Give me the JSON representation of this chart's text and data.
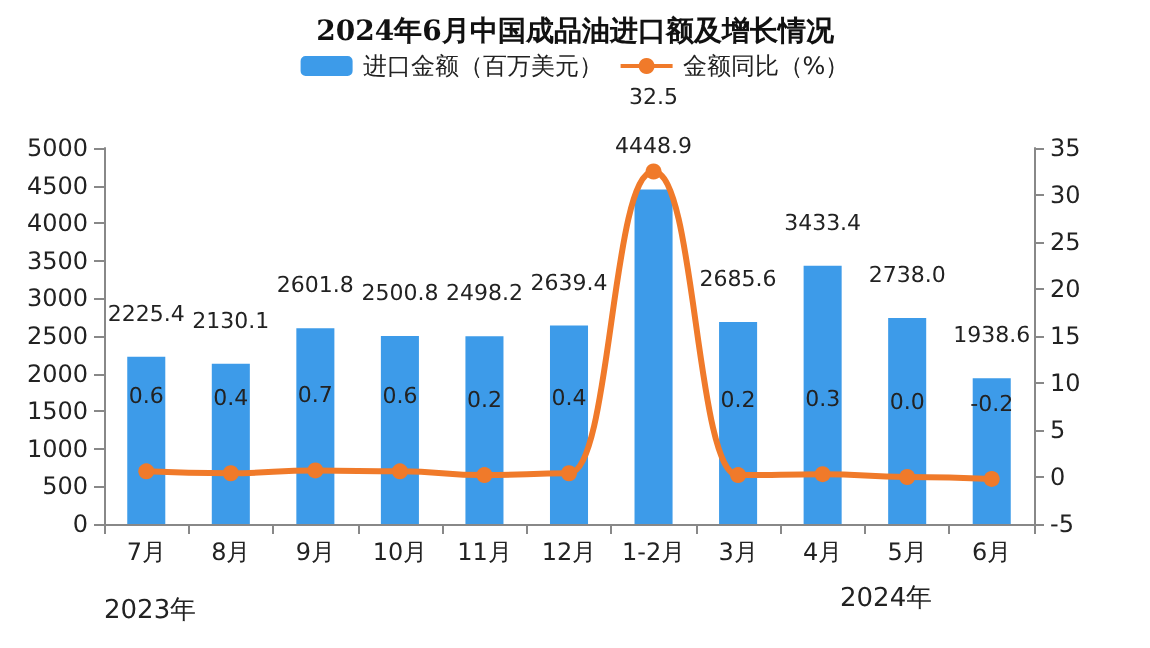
{
  "chart_data": {
    "type": "bar",
    "title": "2024年6月中国成品油进口额及增长情况",
    "categories": [
      "7月",
      "8月",
      "9月",
      "10月",
      "11月",
      "12月",
      "1-2月",
      "3月",
      "4月",
      "5月",
      "6月"
    ],
    "series": [
      {
        "name": "进口金额（百万美元）",
        "color": "#3d9be9",
        "values": [
          2225.4,
          2130.1,
          2601.8,
          2500.8,
          2498.2,
          2639.4,
          4448.9,
          2685.6,
          3433.4,
          2738.0,
          1938.6
        ],
        "value_labels": [
          "2225.4",
          "2130.1",
          "2601.8",
          "2500.8",
          "2498.2",
          "2639.4",
          "4448.9",
          "2685.6",
          "3433.4",
          "2738.0",
          "1938.6"
        ]
      },
      {
        "name": "金额同比（%）",
        "type": "line",
        "axis": "y2",
        "color": "#f07a2a",
        "values": [
          0.6,
          0.4,
          0.7,
          0.6,
          0.2,
          0.4,
          32.5,
          0.2,
          0.3,
          0.0,
          -0.2
        ],
        "value_labels": [
          "0.6",
          "0.4",
          "0.7",
          "0.6",
          "0.2",
          "0.4",
          "32.5",
          "0.2",
          "0.3",
          "0.0",
          "-0.2"
        ]
      }
    ],
    "ylim": [
      0,
      5000
    ],
    "yticks": [
      0,
      500,
      1000,
      1500,
      2000,
      2500,
      3000,
      3500,
      4000,
      4500,
      5000
    ],
    "y2lim": [
      -5,
      35
    ],
    "y2ticks": [
      -5,
      0,
      5,
      10,
      15,
      20,
      25,
      30,
      35
    ],
    "annotations": [
      "2023年",
      "2024年"
    ],
    "legend": "top",
    "grid": false,
    "marker": "circle",
    "line_style": "solid"
  }
}
